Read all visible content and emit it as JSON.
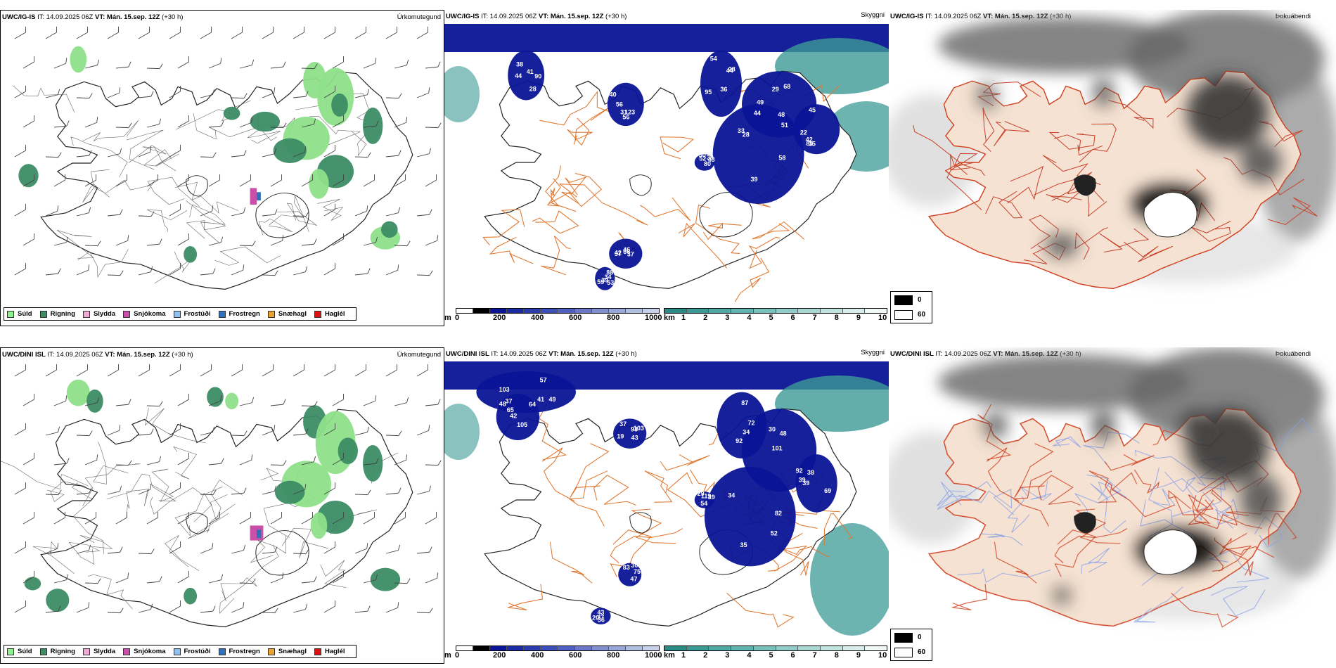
{
  "rows": [
    {
      "left": {
        "model": "UWC/IG-IS",
        "it": " IT: 14.09.2025 06Z ",
        "vt": "VT: Mán. 15.sep. 12Z",
        "lead": " (+30 h)",
        "right_title": "Úrkomutegund"
      },
      "mid": {
        "model": "UWC/IG-IS",
        "it": " IT: 14.09.2025 06Z ",
        "vt": "VT: Mán. 15.sep. 12Z",
        "lead": " (+30 h)",
        "right_title": "Skyggni",
        "labels": [
          "90",
          "123",
          "44",
          "29",
          "33",
          "85",
          "46",
          "53",
          "43",
          "41",
          "40",
          "54",
          "44",
          "58",
          "45",
          "42",
          "88",
          "80",
          "38",
          "56",
          "36",
          "68",
          "39",
          "35",
          "37",
          "34",
          "30",
          "28",
          "31",
          "28",
          "49",
          "51",
          "42",
          "37",
          "39",
          "38",
          "44",
          "56",
          "95",
          "48",
          "28",
          "22",
          "66",
          "59",
          "52"
        ]
      },
      "right": {
        "model": "UWC/IG-IS",
        "it": " IT: 14.09.2025 06Z ",
        "vt": "VT: Mán. 15.sep. 12Z",
        "lead": " (+30 h)",
        "right_title": "Þokuábendi"
      }
    },
    {
      "left": {
        "model": "UWC/DINI ISL",
        "it": " IT: 14.09.2025 06Z ",
        "vt": "VT: Mán. 15.sep. 12Z",
        "lead": " (+30 h)",
        "right_title": "Úrkomutegund"
      },
      "mid": {
        "model": "UWC/DINI ISL",
        "it": " IT: 14.09.2025 06Z ",
        "vt": "VT: Mán. 15.sep. 12Z",
        "lead": " (+30 h)",
        "right_title": "Skyggni",
        "labels": [
          "105",
          "103",
          "103",
          "92",
          "92",
          "34",
          "38",
          "30",
          "36",
          "119",
          "65",
          "48",
          "93",
          "87",
          "101",
          "52",
          "39",
          "47",
          "37",
          "29",
          "42",
          "49",
          "37",
          "34",
          "30",
          "35",
          "69",
          "83",
          "20",
          "54",
          "64",
          "57",
          "43",
          "72",
          "48",
          "82",
          "39",
          "75",
          "43",
          "39",
          "37",
          "41",
          "19"
        ]
      },
      "right": {
        "model": "UWC/DINI ISL",
        "it": " IT: 14.09.2025 06Z ",
        "vt": "VT: Mán. 15.sep. 12Z",
        "lead": " (+30 h)",
        "right_title": "Þokuábendi"
      }
    }
  ],
  "precip_legend": [
    {
      "label": "Súld",
      "color": "#90ee90"
    },
    {
      "label": "Rigning",
      "color": "#3c8c64"
    },
    {
      "label": "Slydda",
      "color": "#f0a8d8"
    },
    {
      "label": "Snjókoma",
      "color": "#c850a8"
    },
    {
      "label": "Frostúði",
      "color": "#90c0f0"
    },
    {
      "label": "Frostregn",
      "color": "#3070b8"
    },
    {
      "label": "Snæhagl",
      "color": "#f0a030"
    },
    {
      "label": "Haglél",
      "color": "#e01010"
    }
  ],
  "ceiling_bar": {
    "unit": "m",
    "ticks": [
      "0",
      "200",
      "400",
      "600",
      "800",
      "1000"
    ]
  },
  "vis_bar": {
    "unit": "km",
    "ticks": [
      "1",
      "2",
      "3",
      "4",
      "5",
      "6",
      "7",
      "8",
      "9",
      "10"
    ]
  },
  "fog_legend": {
    "high": "0",
    "low": "60"
  },
  "colors": {
    "land": "#f5e2d2",
    "deep_blue": "#0a1496",
    "teal": "#3c9a96",
    "road": "#e07830",
    "green_light": "#8ee08a",
    "green_dark": "#3c8c64"
  }
}
